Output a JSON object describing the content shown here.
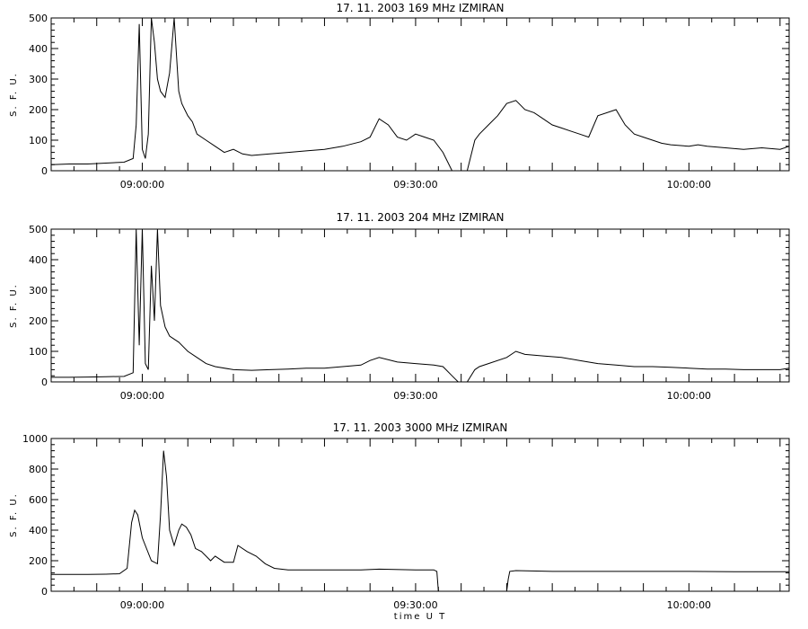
{
  "chart_data": [
    {
      "type": "line",
      "title": "17.  11.  2003    169  MHz     IZMIRAN",
      "ylabel": "S. F. U.",
      "xlabel": "",
      "ylim": [
        0,
        500
      ],
      "yticks": [
        0,
        100,
        200,
        300,
        400,
        500
      ],
      "xticks": [
        "09:00:00",
        "09:30:00",
        "10:00:00"
      ],
      "xlim": [
        "08:50:00",
        "10:11:00"
      ],
      "series": [
        {
          "x": [
            "08:50:00",
            "08:52:00",
            "08:54:00",
            "08:56:00",
            "08:58:00",
            "08:59:00",
            "08:59:20",
            "08:59:40",
            "09:00:00",
            "09:00:20",
            "09:00:40",
            "09:01:00",
            "09:01:20",
            "09:01:40",
            "09:02:00",
            "09:02:30",
            "09:03:00",
            "09:03:30",
            "09:04:00",
            "09:04:20",
            "09:04:40",
            "09:05:00",
            "09:05:30",
            "09:06:00",
            "09:07:00",
            "09:08:00",
            "09:09:00",
            "09:10:00",
            "09:11:00",
            "09:12:00",
            "09:14:00",
            "09:16:00",
            "09:18:00",
            "09:20:00",
            "09:22:00",
            "09:24:00",
            "09:25:00",
            "09:26:00",
            "09:27:00",
            "09:28:00",
            "09:29:00",
            "09:30:00",
            "09:31:00",
            "09:32:00",
            "09:33:00",
            "09:34:00",
            "09:34:40",
            "09:35:40",
            "09:36:30",
            "09:37:00",
            "09:38:00",
            "09:39:00",
            "09:40:00",
            "09:41:00",
            "09:42:00",
            "09:43:00",
            "09:44:00",
            "09:45:00",
            "09:46:00",
            "09:47:00",
            "09:48:00",
            "09:49:00",
            "09:50:00",
            "09:52:00",
            "09:53:00",
            "09:54:00",
            "09:55:00",
            "09:56:00",
            "09:57:00",
            "09:58:00",
            "10:00:00",
            "10:01:00",
            "10:02:00",
            "10:04:00",
            "10:06:00",
            "10:08:00",
            "10:10:00",
            "10:11:00"
          ],
          "values": [
            20,
            22,
            22,
            25,
            28,
            40,
            150,
            480,
            70,
            40,
            120,
            500,
            420,
            300,
            260,
            240,
            320,
            500,
            260,
            220,
            200,
            180,
            160,
            120,
            100,
            80,
            60,
            70,
            55,
            50,
            55,
            60,
            65,
            70,
            80,
            95,
            110,
            170,
            150,
            110,
            100,
            120,
            110,
            100,
            60,
            0,
            0,
            0,
            100,
            120,
            150,
            180,
            220,
            230,
            200,
            190,
            170,
            150,
            140,
            130,
            120,
            110,
            180,
            200,
            150,
            120,
            110,
            100,
            90,
            85,
            80,
            85,
            80,
            75,
            70,
            75,
            70,
            80
          ]
        }
      ]
    },
    {
      "type": "line",
      "title": "17.  11.  2003    204  MHz     IZMIRAN",
      "ylabel": "S. F. U.",
      "xlabel": "",
      "ylim": [
        0,
        500
      ],
      "yticks": [
        0,
        100,
        200,
        300,
        400,
        500
      ],
      "xticks": [
        "09:00:00",
        "09:30:00",
        "10:00:00"
      ],
      "xlim": [
        "08:50:00",
        "10:11:00"
      ],
      "series": [
        {
          "x": [
            "08:50:00",
            "08:52:00",
            "08:54:00",
            "08:56:00",
            "08:58:00",
            "08:59:00",
            "08:59:20",
            "08:59:40",
            "09:00:00",
            "09:00:20",
            "09:00:40",
            "09:01:00",
            "09:01:20",
            "09:01:40",
            "09:02:00",
            "09:02:30",
            "09:03:00",
            "09:03:30",
            "09:04:00",
            "09:05:00",
            "09:06:00",
            "09:07:00",
            "09:08:00",
            "09:10:00",
            "09:12:00",
            "09:14:00",
            "09:16:00",
            "09:18:00",
            "09:20:00",
            "09:22:00",
            "09:24:00",
            "09:25:00",
            "09:26:00",
            "09:28:00",
            "09:30:00",
            "09:32:00",
            "09:33:00",
            "09:34:00",
            "09:34:40",
            "09:35:40",
            "09:36:30",
            "09:37:00",
            "09:38:00",
            "09:40:00",
            "09:41:00",
            "09:42:00",
            "09:44:00",
            "09:46:00",
            "09:48:00",
            "09:50:00",
            "09:52:00",
            "09:54:00",
            "09:56:00",
            "09:58:00",
            "10:00:00",
            "10:02:00",
            "10:04:00",
            "10:06:00",
            "10:08:00",
            "10:10:00",
            "10:11:00"
          ],
          "values": [
            15,
            15,
            16,
            17,
            18,
            30,
            500,
            120,
            500,
            60,
            40,
            380,
            200,
            500,
            250,
            180,
            150,
            140,
            130,
            100,
            80,
            60,
            50,
            40,
            38,
            40,
            42,
            45,
            45,
            50,
            55,
            70,
            80,
            65,
            60,
            55,
            50,
            20,
            0,
            0,
            40,
            50,
            60,
            80,
            100,
            90,
            85,
            80,
            70,
            60,
            55,
            50,
            50,
            48,
            45,
            42,
            42,
            40,
            40,
            40,
            45
          ]
        }
      ]
    },
    {
      "type": "line",
      "title": "17.  11.  2003    3000  MHz     IZMIRAN",
      "ylabel": "S. F. U.",
      "xlabel": "time  U T",
      "ylim": [
        0,
        1000
      ],
      "yticks": [
        0,
        200,
        400,
        600,
        800,
        1000
      ],
      "xticks": [
        "09:00:00",
        "09:30:00",
        "10:00:00"
      ],
      "xlim": [
        "08:50:00",
        "10:11:00"
      ],
      "series": [
        {
          "x": [
            "08:50:00",
            "08:52:00",
            "08:54:00",
            "08:56:00",
            "08:57:30",
            "08:58:20",
            "08:58:50",
            "08:59:10",
            "08:59:30",
            "09:00:00",
            "09:01:00",
            "09:01:40",
            "09:02:00",
            "09:02:20",
            "09:02:40",
            "09:03:00",
            "09:03:30",
            "09:04:00",
            "09:04:20",
            "09:04:50",
            "09:05:20",
            "09:05:50",
            "09:06:30",
            "09:07:30",
            "09:08:00",
            "09:09:00",
            "09:10:00",
            "09:10:30",
            "09:11:30",
            "09:12:30",
            "09:13:30",
            "09:14:30",
            "09:16:00",
            "09:20:00",
            "09:24:00",
            "09:26:00",
            "09:30:00",
            "09:32:00",
            "09:32:20",
            "09:32:30",
            "09:34:00",
            "09:38:00",
            "09:40:00",
            "09:40:10",
            "09:40:20",
            "09:41:00",
            "09:45:00",
            "09:50:00",
            "09:55:00",
            "10:00:00",
            "10:05:00",
            "10:11:00"
          ],
          "values": [
            110,
            110,
            110,
            112,
            115,
            150,
            450,
            530,
            500,
            350,
            200,
            180,
            500,
            920,
            750,
            400,
            300,
            400,
            440,
            420,
            370,
            280,
            260,
            200,
            230,
            190,
            190,
            300,
            260,
            230,
            180,
            150,
            140,
            140,
            140,
            145,
            140,
            140,
            130,
            0,
            0,
            0,
            0,
            80,
            130,
            135,
            130,
            130,
            130,
            130,
            128,
            128
          ]
        }
      ]
    }
  ]
}
